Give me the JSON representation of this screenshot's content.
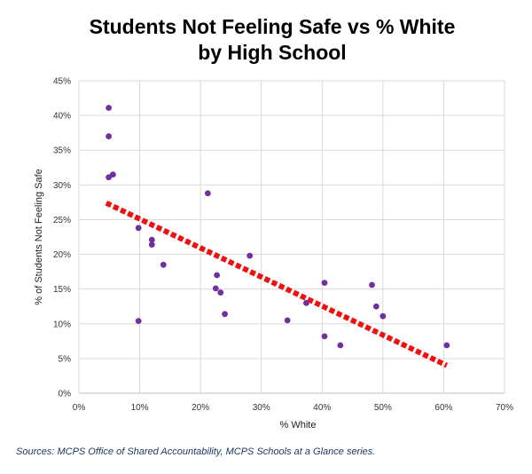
{
  "chart_data": {
    "type": "scatter",
    "title_line1": "Students Not Feeling Safe vs % White",
    "title_line2": "by High School",
    "xlabel": "% White",
    "ylabel": "% of Students Not Feeling Safe",
    "xlim": [
      0,
      70
    ],
    "ylim": [
      0,
      45
    ],
    "x_ticks": [
      0,
      10,
      20,
      30,
      40,
      50,
      60,
      70
    ],
    "y_ticks": [
      0,
      5,
      10,
      15,
      20,
      25,
      30,
      35,
      40,
      45
    ],
    "x_tick_labels": [
      "0%",
      "10%",
      "20%",
      "30%",
      "40%",
      "50%",
      "60%",
      "70%"
    ],
    "y_tick_labels": [
      "0%",
      "5%",
      "10%",
      "15%",
      "20%",
      "25%",
      "30%",
      "35%",
      "40%",
      "45%"
    ],
    "grid": true,
    "points": [
      {
        "x": 4.9,
        "y": 41.1
      },
      {
        "x": 4.9,
        "y": 37.0
      },
      {
        "x": 4.9,
        "y": 31.1
      },
      {
        "x": 5.6,
        "y": 31.5
      },
      {
        "x": 9.8,
        "y": 23.8
      },
      {
        "x": 9.8,
        "y": 10.4
      },
      {
        "x": 12.0,
        "y": 22.1
      },
      {
        "x": 12.0,
        "y": 21.4
      },
      {
        "x": 13.9,
        "y": 18.5
      },
      {
        "x": 21.2,
        "y": 28.8
      },
      {
        "x": 22.5,
        "y": 15.1
      },
      {
        "x": 22.7,
        "y": 17.0
      },
      {
        "x": 23.3,
        "y": 14.5
      },
      {
        "x": 24.0,
        "y": 11.4
      },
      {
        "x": 28.1,
        "y": 19.8
      },
      {
        "x": 34.3,
        "y": 10.5
      },
      {
        "x": 37.4,
        "y": 13.0
      },
      {
        "x": 40.4,
        "y": 15.9
      },
      {
        "x": 40.4,
        "y": 8.2
      },
      {
        "x": 43.0,
        "y": 6.9
      },
      {
        "x": 48.2,
        "y": 15.6
      },
      {
        "x": 48.9,
        "y": 12.5
      },
      {
        "x": 50.0,
        "y": 11.1
      },
      {
        "x": 60.5,
        "y": 6.9
      }
    ],
    "trendline": {
      "x": [
        4.5,
        60.5
      ],
      "y": [
        27.4,
        4.0
      ],
      "color": "#ee1111",
      "style": "dotted"
    },
    "marker_color": "#7030a0"
  },
  "source_text": "Sources: MCPS Office of Shared Accountability, MCPS Schools at a Glance series."
}
